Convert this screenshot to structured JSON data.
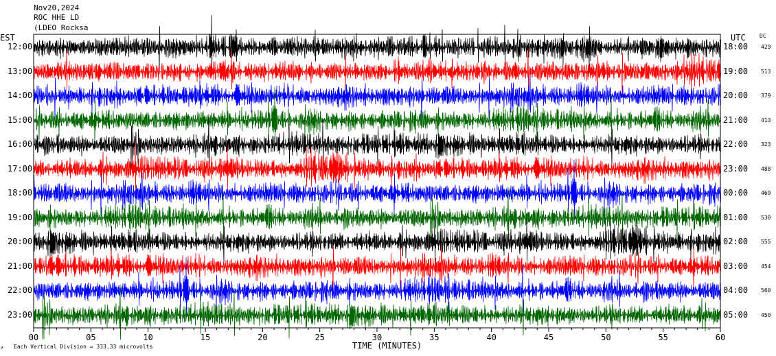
{
  "header": {
    "date": "Nov20,2024",
    "station": "ROC HHE LD",
    "network": "(LDEO Rocksa"
  },
  "labels": {
    "left_tz": "EST",
    "right_tz": "UTC",
    "dc": "DC",
    "xlabel": "TIME (MINUTES)",
    "scale_note": "Each Vertical Division = 333.33 microvolts"
  },
  "chart_data": {
    "type": "line",
    "title": "",
    "x_ticks": [
      "00",
      "05",
      "10",
      "15",
      "20",
      "25",
      "30",
      "35",
      "40",
      "45",
      "50",
      "55",
      "60"
    ],
    "xlim": [
      0,
      60
    ],
    "trace_colors": [
      "#000000",
      "#ff0000",
      "#0000ff",
      "#006600"
    ],
    "rows": [
      {
        "est": "12:00",
        "utc": "18:00",
        "dc": "429"
      },
      {
        "est": "13:00",
        "utc": "19:00",
        "dc": "513"
      },
      {
        "est": "14:00",
        "utc": "20:00",
        "dc": "379"
      },
      {
        "est": "15:00",
        "utc": "21:00",
        "dc": "413"
      },
      {
        "est": "16:00",
        "utc": "22:00",
        "dc": "323"
      },
      {
        "est": "17:00",
        "utc": "23:00",
        "dc": "488"
      },
      {
        "est": "18:00",
        "utc": "00:00",
        "dc": "469"
      },
      {
        "est": "19:00",
        "utc": "01:00",
        "dc": "530"
      },
      {
        "est": "20:00",
        "utc": "02:00",
        "dc": "555"
      },
      {
        "est": "21:00",
        "utc": "03:00",
        "dc": "454"
      },
      {
        "est": "22:00",
        "utc": "04:00",
        "dc": "560"
      },
      {
        "est": "23:00",
        "utc": "05:00",
        "dc": "450"
      }
    ]
  }
}
